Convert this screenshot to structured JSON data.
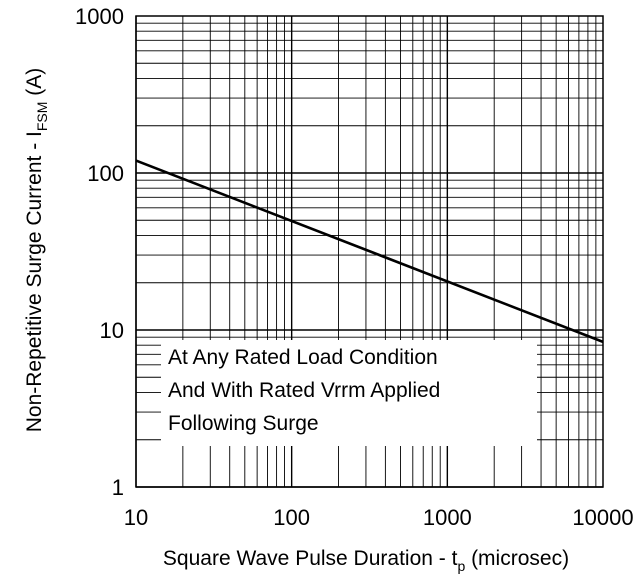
{
  "chart_data": {
    "type": "line",
    "xlabel_main": "Square Wave Pulse Duration - t",
    "xlabel_sub": "p",
    "xlabel_tail": " (microsec)",
    "ylabel_main": "Non-Repetitive Surge Current - I",
    "ylabel_sub": "FSM",
    "ylabel_tail": " (A)",
    "x_scale": "log",
    "y_scale": "log",
    "xlim": [
      10,
      10000
    ],
    "ylim": [
      1,
      1000
    ],
    "x_ticks": [
      10,
      100,
      1000,
      10000
    ],
    "x_tick_labels": [
      "10",
      "100",
      "1000",
      "10000"
    ],
    "y_ticks": [
      1,
      10,
      100,
      1000
    ],
    "y_tick_labels": [
      "1",
      "10",
      "100",
      "1000"
    ],
    "grid": true,
    "series": [
      {
        "x": [
          10,
          10000
        ],
        "y": [
          120,
          8.4
        ]
      }
    ],
    "annotation_lines": [
      "At Any Rated Load Condition",
      "And With Rated Vrrm Applied",
      "Following Surge"
    ],
    "colors": {
      "line": "#000000",
      "grid": "#000000",
      "background": "#ffffff"
    }
  }
}
